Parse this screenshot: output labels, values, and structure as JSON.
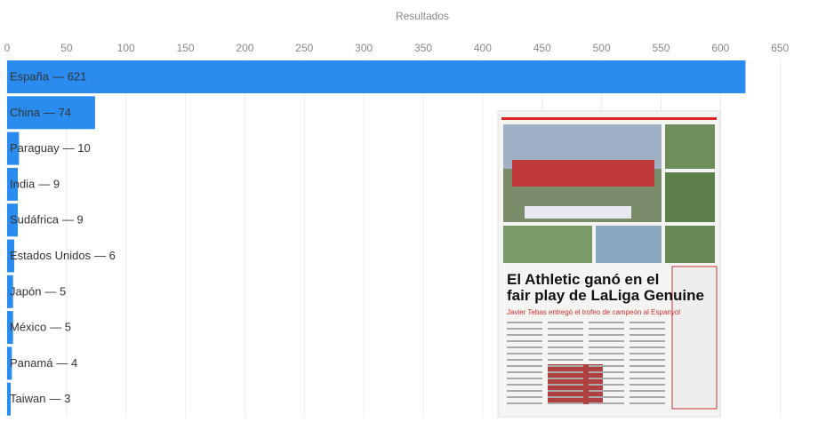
{
  "chart_data": {
    "type": "barh",
    "xlabel": "Resultados",
    "categories": [
      "España",
      "China",
      "Paraguay",
      "India",
      "Sudáfrica",
      "Estados Unidos",
      "Japón",
      "México",
      "Panamá",
      "Taiwan"
    ],
    "values": [
      621,
      74,
      10,
      9,
      9,
      6,
      5,
      5,
      4,
      3
    ],
    "value_labels": [
      "— 621",
      "— 74",
      "— 10",
      "— 9",
      "— 9",
      "— 6",
      "— 5",
      "— 5",
      "— 4",
      "— 3"
    ],
    "color": "#2b8cf0",
    "xlim": [
      0,
      682
    ],
    "xticks": [
      0,
      50,
      100,
      150,
      200,
      250,
      300,
      350,
      400,
      450,
      500,
      550,
      600,
      650
    ],
    "grid": true
  },
  "overlay": {
    "headline": "El Athletic ganó en el fair play de LaLiga Genuine",
    "subheadline": "Javier Tebas entregó el trofeo de campeón al Espanyol"
  }
}
